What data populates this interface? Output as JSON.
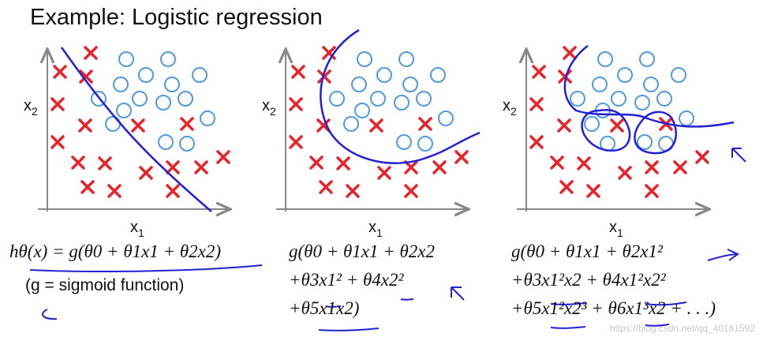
{
  "title": "Example: Logistic regression",
  "axes": {
    "x_label": "x",
    "x_sub": "1",
    "y_label": "x",
    "y_sub": "2"
  },
  "formulas": {
    "left_1": "hθ(x) = g(θ0 + θ1x1 + θ2x2)",
    "left_2": "(g = sigmoid function)",
    "middle": [
      "g(θ0 + θ1x1 + θ2x2",
      "+θ3x1² + θ4x2²",
      "+θ5x1x2)"
    ],
    "right": [
      "g(θ0 + θ1x1 + θ2x1²",
      "+θ3x1²x2 + θ4x1²x2²",
      "+θ5x1²x2³ + θ6x1³x2 + . . .)"
    ]
  },
  "watermark": "https://blog.csdn.net/qq_40181592",
  "colors": {
    "cross": "#e8232a",
    "circle": "#4f9be0",
    "boundary": "#2420d6",
    "axis": "#888888"
  }
}
